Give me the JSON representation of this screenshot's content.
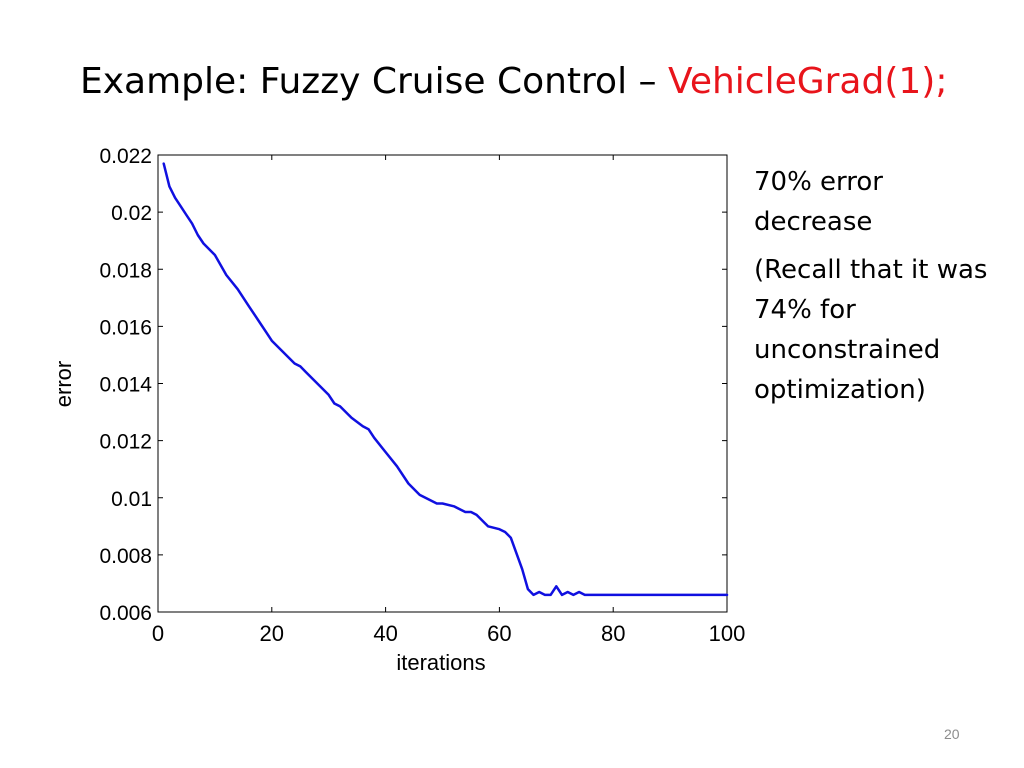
{
  "slide": {
    "title_prefix": "Example: Fuzzy Cruise Control – ",
    "title_highlight": "VehicleGrad(1);",
    "notes": [
      "70% error decrease",
      "(Recall that it was 74% for unconstrained optimization)"
    ],
    "page_number": "20"
  },
  "colors": {
    "line": "#1010e0",
    "highlight": "#e8141b",
    "page_number": "#8c8c8c"
  },
  "chart_data": {
    "type": "line",
    "title": "",
    "xlabel": "iterations",
    "ylabel": "error",
    "xlim": [
      0,
      100
    ],
    "ylim": [
      0.006,
      0.022
    ],
    "grid": false,
    "x_ticks": [
      0,
      20,
      40,
      60,
      80,
      100
    ],
    "x_tick_labels": [
      "0",
      "20",
      "40",
      "60",
      "80",
      "100"
    ],
    "y_ticks": [
      0.006,
      0.008,
      0.01,
      0.012,
      0.014,
      0.016,
      0.018,
      0.02,
      0.022
    ],
    "y_tick_labels": [
      "0.006",
      "0.008",
      "0.01",
      "0.012",
      "0.014",
      "0.016",
      "0.018",
      "0.02",
      "0.022"
    ],
    "series": [
      {
        "x": [
          1,
          2,
          3,
          4,
          5,
          6,
          7,
          8,
          9,
          10,
          12,
          14,
          16,
          18,
          19,
          20,
          22,
          24,
          25,
          26,
          28,
          30,
          31,
          32,
          34,
          36,
          37,
          38,
          40,
          42,
          44,
          46,
          48,
          49,
          50,
          52,
          54,
          55,
          56,
          58,
          60,
          61,
          62,
          64,
          65,
          66,
          67,
          68,
          69,
          70,
          71,
          72,
          73,
          74,
          75,
          76,
          78,
          80,
          85,
          90,
          95,
          100
        ],
        "values": [
          0.0217,
          0.0209,
          0.0205,
          0.0202,
          0.0199,
          0.0196,
          0.0192,
          0.0189,
          0.0187,
          0.0185,
          0.0178,
          0.0173,
          0.0167,
          0.0161,
          0.0158,
          0.0155,
          0.0151,
          0.0147,
          0.0146,
          0.0144,
          0.014,
          0.0136,
          0.0133,
          0.0132,
          0.0128,
          0.0125,
          0.0124,
          0.0121,
          0.0116,
          0.0111,
          0.0105,
          0.0101,
          0.0099,
          0.0098,
          0.0098,
          0.0097,
          0.0095,
          0.0095,
          0.0094,
          0.009,
          0.0089,
          0.0088,
          0.0086,
          0.0075,
          0.0068,
          0.0066,
          0.0067,
          0.0066,
          0.0066,
          0.0069,
          0.0066,
          0.0067,
          0.0066,
          0.0067,
          0.0066,
          0.0066,
          0.0066,
          0.0066,
          0.0066,
          0.0066,
          0.0066,
          0.0066
        ]
      }
    ]
  }
}
